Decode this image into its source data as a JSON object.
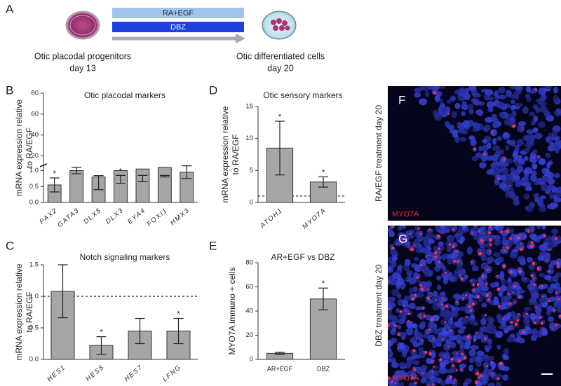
{
  "figure": {
    "panel_labels": [
      "A",
      "B",
      "C",
      "D",
      "E",
      "F",
      "G"
    ],
    "schema": {
      "treatments": [
        "RA+EGF",
        "DBZ"
      ],
      "start": [
        "Otic placodal progenitors",
        "day 13"
      ],
      "end": [
        "Otic differentiated cells",
        "day 20"
      ]
    },
    "images": [
      {
        "label": "RA/EGF treatment day 20",
        "stain": "MYO7A"
      },
      {
        "label": "DBZ treatment day 20",
        "stain": "MYO7A"
      }
    ]
  },
  "chart_data": [
    {
      "type": "bar",
      "title": "Otic placodal markers",
      "ylabel": [
        "mRNA expression relative",
        "to RA/EGF"
      ],
      "categories": [
        "PAX2",
        "GATA3",
        "DLX5",
        "DLX3",
        "EYA4",
        "FOXI1",
        "HMX3"
      ],
      "values": [
        0.55,
        1.0,
        0.8,
        1.0,
        1.05,
        1.1,
        0.95
      ],
      "errors": [
        0.22,
        0.1,
        0.4,
        0.4,
        0.4,
        0.3,
        0.2
      ],
      "stars": [
        "*",
        null,
        null,
        "*",
        null,
        null,
        null
      ],
      "color": "#a6a6a6",
      "ylim": [
        0,
        80
      ],
      "axis_break": [
        1.2,
        10
      ],
      "yticks": [
        {
          "value": 0,
          "label": "0.0"
        },
        0.5,
        {
          "value": 1,
          "label": "1.0"
        },
        20,
        40,
        60,
        80
      ],
      "grid": false
    },
    {
      "type": "bar",
      "title": "Notch signaling markers",
      "ylabel": [
        "mRNA expression relative",
        "to RA/EGF"
      ],
      "categories": [
        "HES1",
        "HES5",
        "HES7",
        "LFNG"
      ],
      "values": [
        1.08,
        0.22,
        0.45,
        0.45
      ],
      "errors": [
        0.42,
        0.14,
        0.2,
        0.2
      ],
      "stars": [
        null,
        "*",
        null,
        "*"
      ],
      "color": "#a6a6a6",
      "ylim": [
        0,
        1.5
      ],
      "yticks": [
        {
          "value": 0,
          "label": "0.0"
        },
        0.5,
        {
          "value": 1,
          "label": "1.0"
        },
        1.5
      ],
      "reference_line": 1,
      "grid": false
    },
    {
      "type": "bar",
      "title": "Otic sensory markers",
      "ylabel": [
        "mRNA expression relative",
        "to RA/EGF"
      ],
      "categories": [
        "ATOH1",
        "MYO7A"
      ],
      "values": [
        8.5,
        3.2
      ],
      "errors": [
        4.2,
        0.8
      ],
      "stars": [
        "*",
        "*"
      ],
      "color": "#a6a6a6",
      "ylim": [
        0,
        15
      ],
      "yticks": [
        0,
        5,
        10,
        15
      ],
      "reference_line": 1,
      "grid": false
    },
    {
      "type": "bar",
      "title": "AR+EGF vs DBZ",
      "ylabel": [
        "MYO7A immuno + cells"
      ],
      "categories": [
        "AR+EGF",
        "DBZ"
      ],
      "values": [
        5,
        50
      ],
      "errors": [
        0.8,
        9
      ],
      "stars": [
        null,
        "*"
      ],
      "color": "#a6a6a6",
      "ylim": [
        0,
        80
      ],
      "yticks": [
        0,
        20,
        40,
        60,
        80
      ],
      "grid": false
    }
  ]
}
